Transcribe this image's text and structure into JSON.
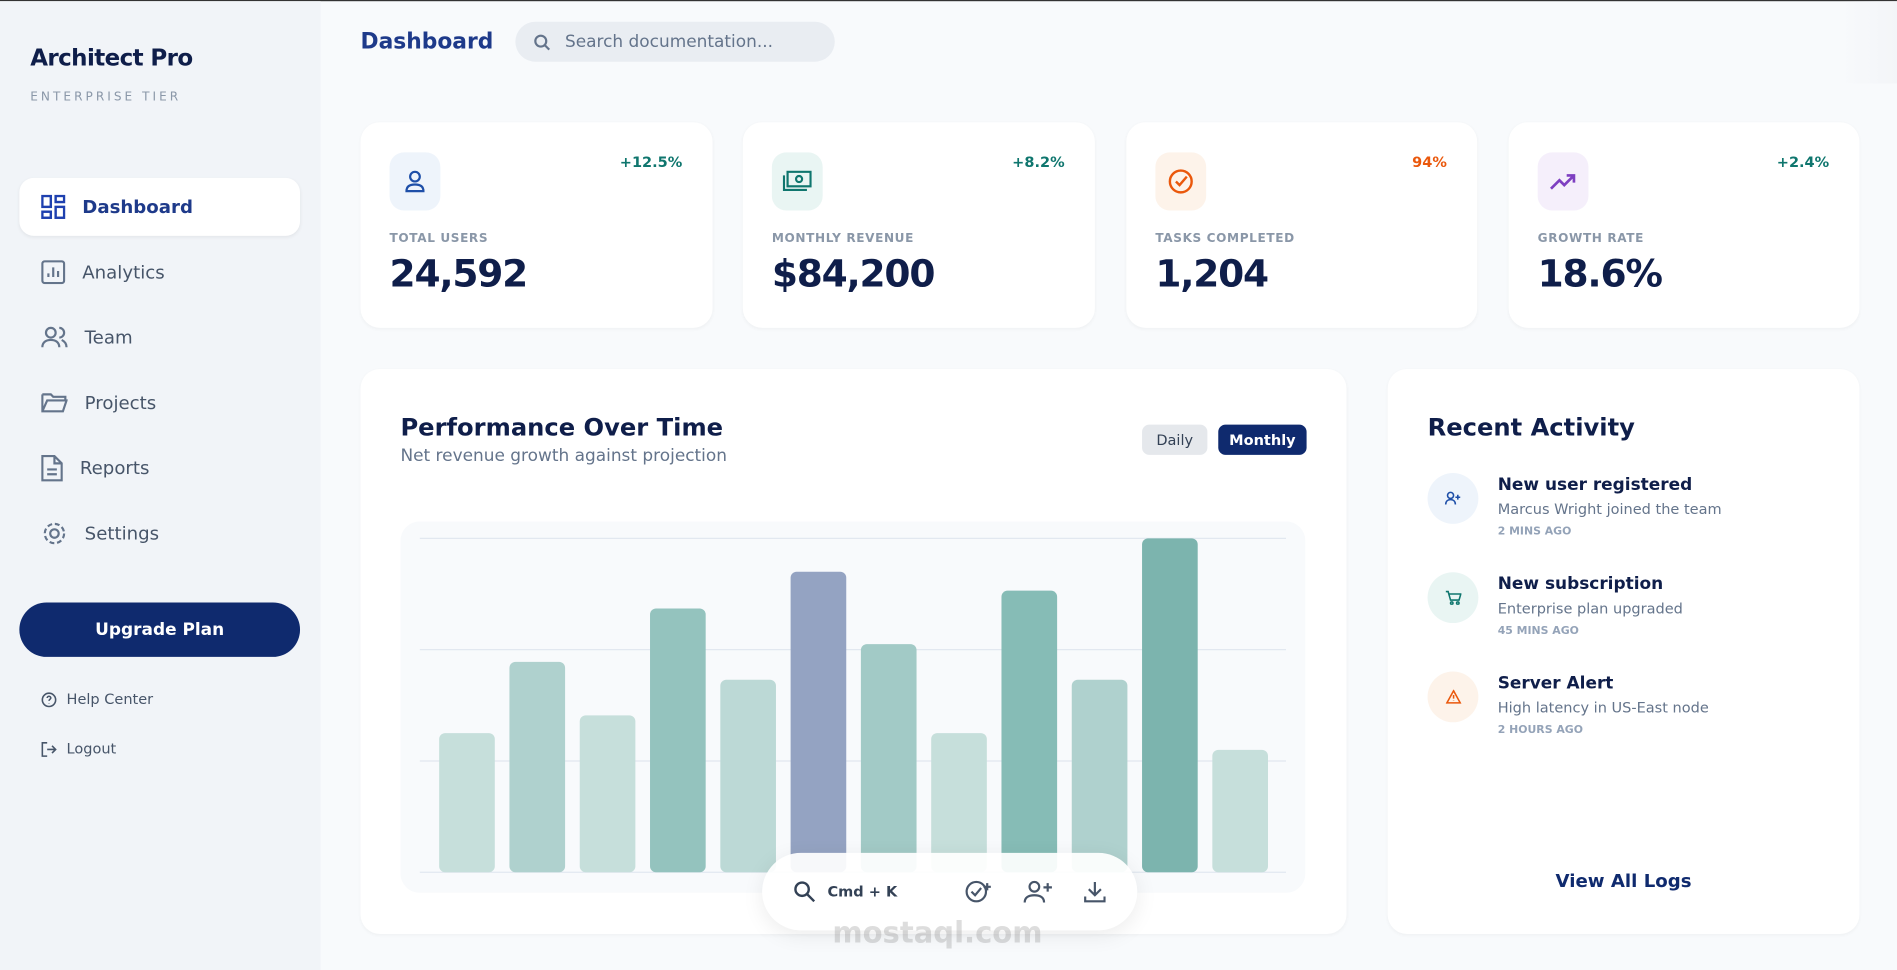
{
  "sidebar": {
    "brand": "Architect Pro",
    "tier": "ENTERPRISE TIER",
    "nav": [
      "Dashboard",
      "Analytics",
      "Team",
      "Projects",
      "Reports",
      "Settings"
    ],
    "upgrade": "Upgrade Plan",
    "help": "Help Center",
    "logout": "Logout"
  },
  "header": {
    "title": "Dashboard",
    "search": "Search documentation..."
  },
  "stats": [
    {
      "label": "TOTAL USERS",
      "value": "24,592",
      "change": "+12.5%"
    },
    {
      "label": "MONTHLY REVENUE",
      "value": "$84,200",
      "change": "+8.2%"
    },
    {
      "label": "TASKS COMPLETED",
      "value": "1,204",
      "change": "94%"
    },
    {
      "label": "GROWTH RATE",
      "value": "18.6%",
      "change": "+2.4%"
    }
  ],
  "chart_data": {
    "type": "bar",
    "title": "Performance Over Time",
    "subtitle": "Net revenue growth against projection",
    "toggles": [
      "Daily",
      "Monthly"
    ],
    "values": [
      1.25,
      1.89,
      1.41,
      2.37,
      1.73,
      2.7,
      2.05,
      1.25,
      2.53,
      1.73,
      3.0,
      1.1
    ],
    "colors": [
      "#c6dfdb",
      "#afd1ce",
      "#c6dfdb",
      "#94c3be",
      "#bcd9d6",
      "#94a3c2",
      "#a2cac6",
      "#c6dfdb",
      "#86bcb6",
      "#afd1ce",
      "#7cb4ae",
      "#c6dfdb"
    ],
    "ylim": [
      0,
      3
    ],
    "yticks": [
      0,
      1,
      2,
      3
    ],
    "grid": true
  },
  "activity": {
    "title": "Recent Activity",
    "items": [
      {
        "title": "New user registered",
        "detail": "Marcus Wright joined the team",
        "time": "2 MINS AGO"
      },
      {
        "title": "New subscription",
        "detail": "Enterprise plan upgraded",
        "time": "45 MINS AGO"
      },
      {
        "title": "Server Alert",
        "detail": "High latency in US-East node",
        "time": "2 HOURS AGO"
      }
    ],
    "link": "View All Logs"
  },
  "toolbar": {
    "shortcut": "Cmd + K",
    "watermark": "mostaql.com"
  }
}
